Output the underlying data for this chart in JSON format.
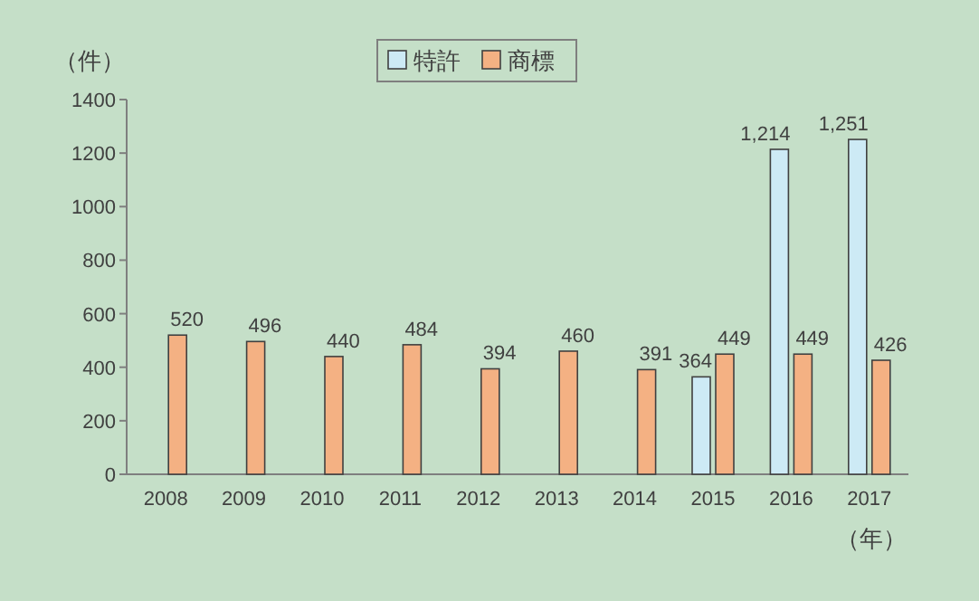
{
  "chart_data": {
    "type": "bar",
    "ylabel": "（件）",
    "xlabel": "（年）",
    "categories": [
      "2008",
      "2009",
      "2010",
      "2011",
      "2012",
      "2013",
      "2014",
      "2015",
      "2016",
      "2017"
    ],
    "series": [
      {
        "name": "特許",
        "color": "#cdeaf5",
        "values": [
          null,
          null,
          null,
          null,
          null,
          null,
          null,
          364,
          1214,
          1251
        ],
        "value_labels": [
          null,
          null,
          null,
          null,
          null,
          null,
          null,
          "364",
          "1,214",
          "1,251"
        ]
      },
      {
        "name": "商標",
        "color": "#f4b183",
        "values": [
          520,
          496,
          440,
          484,
          394,
          460,
          391,
          449,
          449,
          426
        ],
        "value_labels": [
          "520",
          "496",
          "440",
          "484",
          "394",
          "460",
          "391",
          "449",
          "449",
          "426"
        ]
      }
    ],
    "ylim": [
      0,
      1400
    ],
    "yticks": [
      0,
      200,
      400,
      600,
      800,
      1000,
      1200,
      1400
    ],
    "legend": "top",
    "grid": false
  }
}
